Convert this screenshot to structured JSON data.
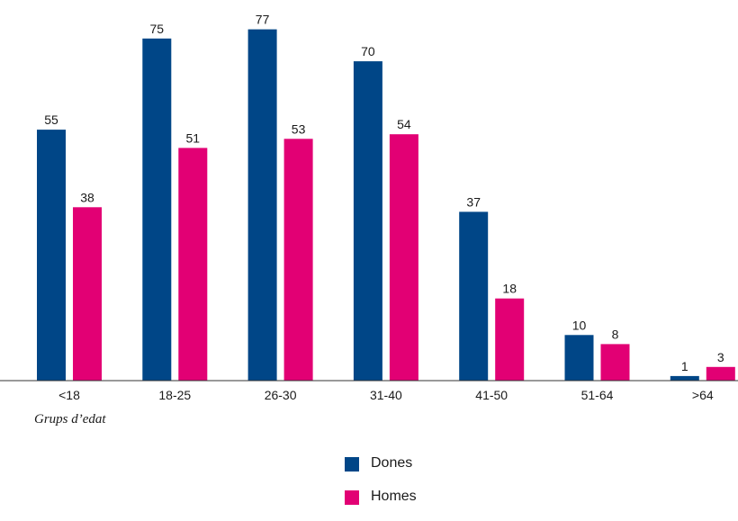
{
  "chart_data": {
    "type": "bar",
    "xlabel": "Grups d’edat",
    "ylabel": "",
    "ylim": [
      0,
      80
    ],
    "grid": false,
    "categories": [
      "<18",
      "18-25",
      "26-30",
      "31-40",
      "41-50",
      "51-64",
      ">64"
    ],
    "series": [
      {
        "name": "Dones",
        "color": "#004687",
        "values": [
          55,
          75,
          77,
          70,
          37,
          10,
          1
        ]
      },
      {
        "name": "Homes",
        "color": "#e20074",
        "values": [
          38,
          51,
          53,
          54,
          18,
          8,
          3
        ]
      }
    ],
    "data_labels": true,
    "legend_position": "bottom-center"
  }
}
